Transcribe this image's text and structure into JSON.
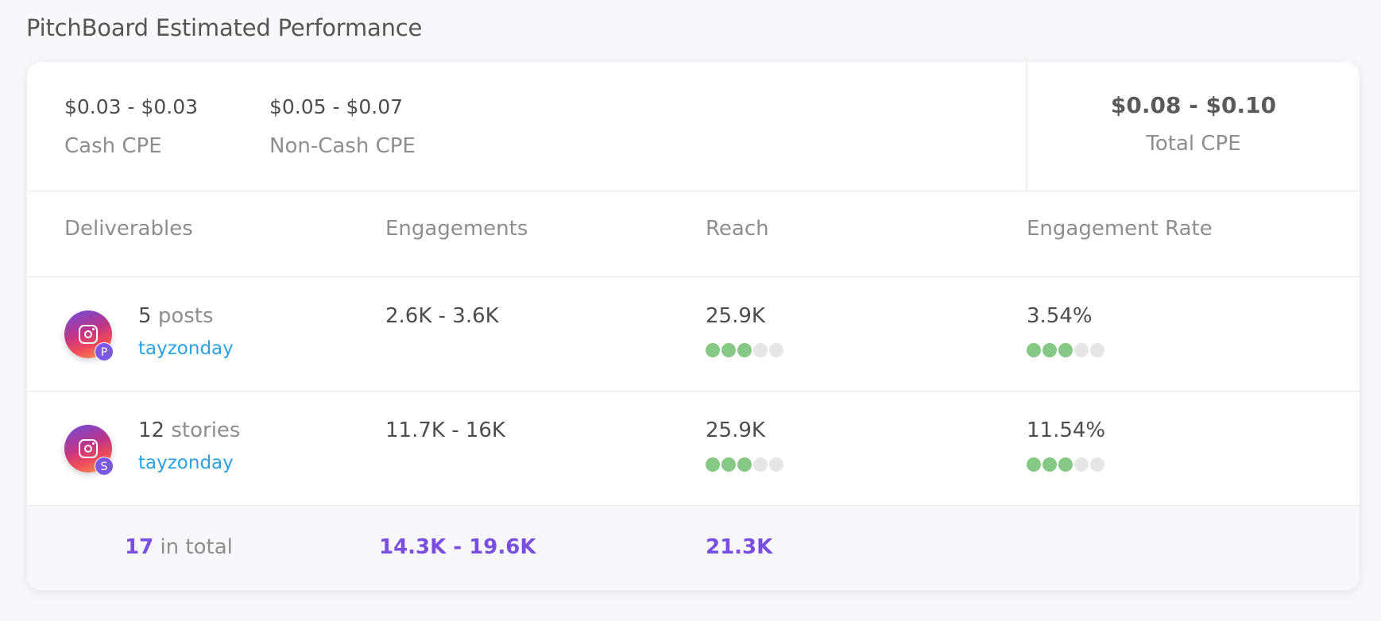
{
  "page_title": "PitchBoard Estimated Performance",
  "cpe": {
    "cash": {
      "value": "$0.03 - $0.03",
      "label": "Cash CPE"
    },
    "non_cash": {
      "value": "$0.05 - $0.07",
      "label": "Non-Cash CPE"
    },
    "total": {
      "value": "$0.08 - $0.10",
      "label": "Total CPE"
    }
  },
  "columns": [
    "Deliverables",
    "Engagements",
    "Reach",
    "Engagement Rate"
  ],
  "rows": [
    {
      "platform_icon": "instagram-icon",
      "badge": "P",
      "count": "5",
      "unit": "posts",
      "username": "tayzonday",
      "engagements": "2.6K - 3.6K",
      "reach": "25.9K",
      "reach_rating": 3,
      "engagement_rate": "3.54%",
      "engagement_rate_rating": 3
    },
    {
      "platform_icon": "instagram-icon",
      "badge": "S",
      "count": "12",
      "unit": "stories",
      "username": "tayzonday",
      "engagements": "11.7K - 16K",
      "reach": "25.9K",
      "reach_rating": 3,
      "engagement_rate": "11.54%",
      "engagement_rate_rating": 3
    }
  ],
  "rating_max": 5,
  "totals": {
    "count": "17",
    "label": "in total",
    "engagements": "14.3K - 19.6K",
    "reach": "21.3K"
  },
  "colors": {
    "accent": "#7a4fe0",
    "link": "#2aa3e6",
    "rating_on": "#86c985",
    "rating_off": "#e6e6e6"
  }
}
